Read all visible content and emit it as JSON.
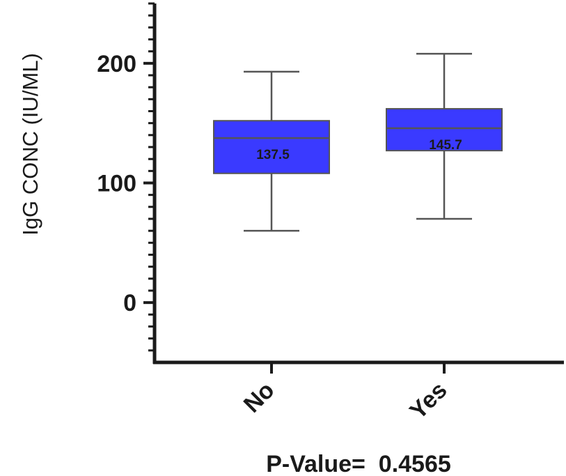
{
  "chart_data": {
    "type": "box",
    "ylabel": "IgG CONC (IU/ML)",
    "xlabel": "",
    "ylim": [
      -50,
      250
    ],
    "yticks": [
      0,
      100,
      200
    ],
    "ytick_labels": [
      "0",
      "100",
      "200"
    ],
    "minor_tick_step": 10,
    "categories": [
      "No",
      "Yes"
    ],
    "boxes": [
      {
        "category": "No",
        "min": 60,
        "q1": 108,
        "median": 137.5,
        "q3": 152,
        "max": 193,
        "median_label": "137.5"
      },
      {
        "category": "Yes",
        "min": 70,
        "q1": 127,
        "median": 145.7,
        "q3": 162,
        "max": 208,
        "median_label": "145.7"
      }
    ],
    "box_color": "#3a3aff",
    "annotation": "P-Value=  0.4565"
  }
}
